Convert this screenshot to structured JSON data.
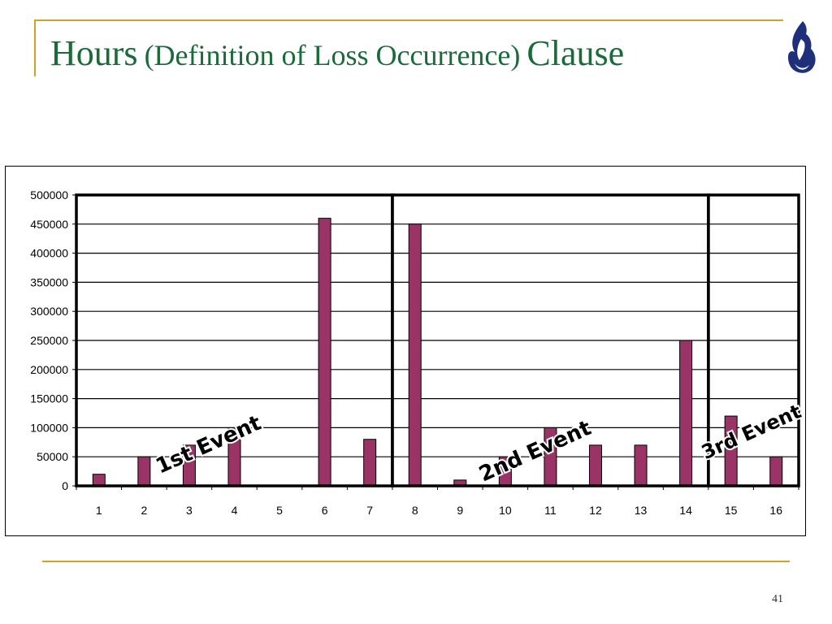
{
  "slide": {
    "title_main": "Hours",
    "title_paren": "(Definition of Loss Occurrence)",
    "title_end": "Clause",
    "page_number": "41",
    "accent_color": "#d4a02a",
    "title_color": "#1a6b3a",
    "logo_icon": "flame-logo-icon",
    "logo_color": "#1f2f7a"
  },
  "chart_data": {
    "type": "bar",
    "categories": [
      "1",
      "2",
      "3",
      "4",
      "5",
      "6",
      "7",
      "8",
      "9",
      "10",
      "11",
      "12",
      "13",
      "14",
      "15",
      "16"
    ],
    "values": [
      20000,
      50000,
      70000,
      100000,
      0,
      460000,
      80000,
      450000,
      10000,
      50000,
      100000,
      70000,
      70000,
      250000,
      120000,
      50000
    ],
    "ylim": [
      0,
      500000
    ],
    "yticks": [
      "0",
      "50000",
      "100000",
      "150000",
      "200000",
      "250000",
      "300000",
      "350000",
      "400000",
      "450000",
      "500000"
    ],
    "grid": true,
    "bar_color": "#9b3466",
    "event_boundaries": [
      7,
      14
    ],
    "annotations": [
      "1st Event",
      "2nd Event",
      "3rd Event"
    ]
  }
}
